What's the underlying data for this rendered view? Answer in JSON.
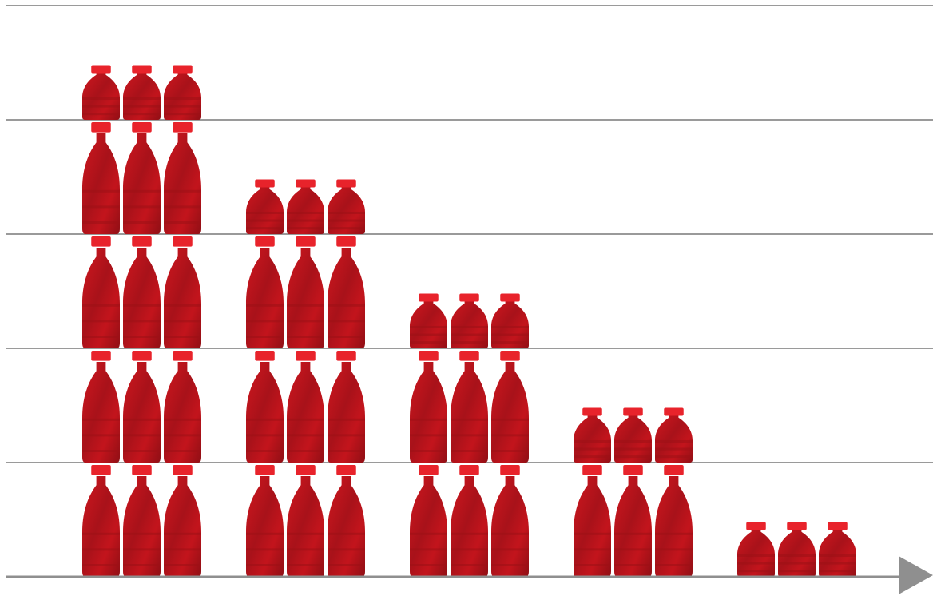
{
  "chart_data": {
    "type": "bar",
    "style": "pictograph",
    "icon": "bottle-icon",
    "bottles_per_row": 3,
    "categories": [
      "",
      "",
      "",
      "",
      ""
    ],
    "values": [
      4.5,
      3.5,
      2.5,
      1.5,
      0.5
    ],
    "ylim": [
      0,
      5
    ],
    "grid": true,
    "colors": {
      "bottle": "#c8141c",
      "bottle_dark": "#9c1016",
      "cap": "#e8232b",
      "grid": "#9a9a9a",
      "axis": "#8f8f8f"
    }
  }
}
